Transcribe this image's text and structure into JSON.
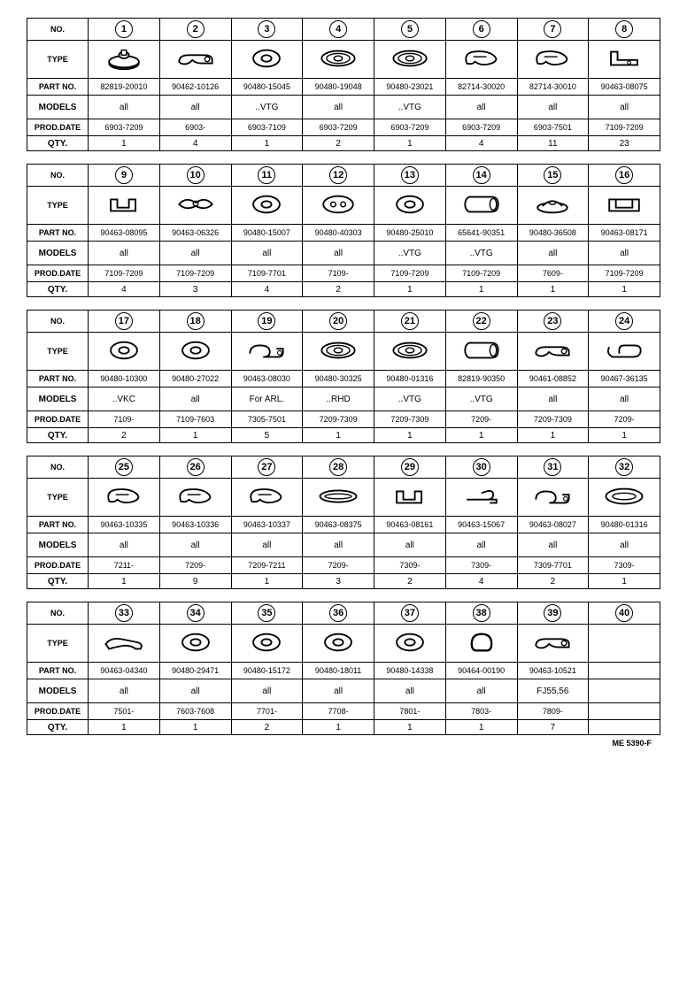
{
  "row_labels": {
    "no": "NO.",
    "type": "TYPE",
    "part": "PART NO.",
    "models": "MODELS",
    "prod": "PROD.DATE",
    "qty": "QTY."
  },
  "footer": "ME 5390-F",
  "blocks": [
    {
      "items": [
        {
          "no": "1",
          "icon": "knob",
          "part": "82819-20010",
          "models": "all",
          "prod": "6903-7209",
          "qty": "1"
        },
        {
          "no": "2",
          "icon": "clamp-flat",
          "part": "90462-10126",
          "models": "all",
          "prod": "6903-",
          "qty": "4"
        },
        {
          "no": "3",
          "icon": "grommet",
          "part": "90480-15045",
          "models": "..VTG",
          "prod": "6903-7109",
          "qty": "1"
        },
        {
          "no": "4",
          "icon": "grommet-wide",
          "part": "90480-19048",
          "models": "all",
          "prod": "6903-7209",
          "qty": "2"
        },
        {
          "no": "5",
          "icon": "grommet-wide",
          "part": "90480-23021",
          "models": "..VTG",
          "prod": "6903-7209",
          "qty": "1"
        },
        {
          "no": "6",
          "icon": "clip-wire",
          "part": "82714-30020",
          "models": "all",
          "prod": "6903-7209",
          "qty": "4"
        },
        {
          "no": "7",
          "icon": "clip-wire",
          "part": "82714-30010",
          "models": "all",
          "prod": "6903-7501",
          "qty": "11"
        },
        {
          "no": "8",
          "icon": "bracket",
          "part": "90463-08075",
          "models": "all",
          "prod": "7109-7209",
          "qty": "23"
        }
      ]
    },
    {
      "items": [
        {
          "no": "9",
          "icon": "clip-u",
          "part": "90463-08095",
          "models": "all",
          "prod": "7109-7209",
          "qty": "4"
        },
        {
          "no": "10",
          "icon": "clamp-wing",
          "part": "90463-06326",
          "models": "all",
          "prod": "7109-7209",
          "qty": "3"
        },
        {
          "no": "11",
          "icon": "grommet",
          "part": "90480-15007",
          "models": "all",
          "prod": "7109-7701",
          "qty": "4"
        },
        {
          "no": "12",
          "icon": "grommet-2hole",
          "part": "90480-40303",
          "models": "all",
          "prod": "7109-",
          "qty": "2"
        },
        {
          "no": "13",
          "icon": "grommet",
          "part": "90480-25010",
          "models": "..VTG",
          "prod": "7109-7209",
          "qty": "1"
        },
        {
          "no": "14",
          "icon": "bushing",
          "part": "65641-90351",
          "models": "..VTG",
          "prod": "7109-7209",
          "qty": "1"
        },
        {
          "no": "15",
          "icon": "washer-dome",
          "part": "90480-36508",
          "models": "all",
          "prod": "7609-",
          "qty": "1"
        },
        {
          "no": "16",
          "icon": "clip-box",
          "part": "90463-08171",
          "models": "all",
          "prod": "7109-7209",
          "qty": "1"
        }
      ]
    },
    {
      "items": [
        {
          "no": "17",
          "icon": "grommet",
          "part": "90480-10300",
          "models": "..VKC",
          "prod": "7109-",
          "qty": "2"
        },
        {
          "no": "18",
          "icon": "grommet",
          "part": "90480-27022",
          "models": "all",
          "prod": "7109-7603",
          "qty": "1"
        },
        {
          "no": "19",
          "icon": "clamp-loop",
          "part": "90463-08030",
          "models": "For ARL.",
          "prod": "7305-7501",
          "qty": "5"
        },
        {
          "no": "20",
          "icon": "grommet-wide",
          "part": "90480-30325",
          "models": "..RHD",
          "prod": "7209-7309",
          "qty": "1"
        },
        {
          "no": "21",
          "icon": "grommet-wide",
          "part": "90480-01316",
          "models": "..VTG",
          "prod": "7209-7309",
          "qty": "1"
        },
        {
          "no": "22",
          "icon": "bushing",
          "part": "82819-90350",
          "models": "..VTG",
          "prod": "7209-",
          "qty": "1"
        },
        {
          "no": "23",
          "icon": "clamp-flat",
          "part": "90461-08852",
          "models": "all",
          "prod": "7209-7309",
          "qty": "1"
        },
        {
          "no": "24",
          "icon": "clip-hook",
          "part": "90467-36135",
          "models": "all",
          "prod": "7209-",
          "qty": "1"
        }
      ]
    },
    {
      "items": [
        {
          "no": "25",
          "icon": "clip-wire",
          "part": "90463-10335",
          "models": "all",
          "prod": "7211-",
          "qty": "1"
        },
        {
          "no": "26",
          "icon": "clip-wire",
          "part": "90463-10336",
          "models": "all",
          "prod": "7209-",
          "qty": "9"
        },
        {
          "no": "27",
          "icon": "clip-wire",
          "part": "90463-10337",
          "models": "all",
          "prod": "7209-7211",
          "qty": "1"
        },
        {
          "no": "28",
          "icon": "clip-long",
          "part": "90463-08375",
          "models": "all",
          "prod": "7209-",
          "qty": "3"
        },
        {
          "no": "29",
          "icon": "clip-u",
          "part": "90463-08161",
          "models": "all",
          "prod": "7309-",
          "qty": "2"
        },
        {
          "no": "30",
          "icon": "clip-tie",
          "part": "90463-15067",
          "models": "all",
          "prod": "7309-",
          "qty": "4"
        },
        {
          "no": "31",
          "icon": "clamp-loop",
          "part": "90463-08027",
          "models": "all",
          "prod": "7309-7701",
          "qty": "2"
        },
        {
          "no": "32",
          "icon": "grommet-oval",
          "part": "90480-01316",
          "models": "all",
          "prod": "7309-",
          "qty": "1"
        }
      ]
    },
    {
      "items": [
        {
          "no": "33",
          "icon": "strap",
          "part": "90463-04340",
          "models": "all",
          "prod": "7501-",
          "qty": "1"
        },
        {
          "no": "34",
          "icon": "grommet",
          "part": "90480-29471",
          "models": "all",
          "prod": "7603-7608",
          "qty": "1"
        },
        {
          "no": "35",
          "icon": "grommet",
          "part": "90480-15172",
          "models": "all",
          "prod": "7701-",
          "qty": "2"
        },
        {
          "no": "36",
          "icon": "grommet",
          "part": "90480-18011",
          "models": "all",
          "prod": "7708-",
          "qty": "1"
        },
        {
          "no": "37",
          "icon": "grommet",
          "part": "90480-14338",
          "models": "all",
          "prod": "7801-",
          "qty": "1"
        },
        {
          "no": "38",
          "icon": "loop",
          "part": "90464-00190",
          "models": "all",
          "prod": "7803-",
          "qty": "1"
        },
        {
          "no": "39",
          "icon": "clamp-flat",
          "part": "90463-10521",
          "models": "FJ55,56",
          "prod": "7809-",
          "qty": "7"
        },
        {
          "no": "40",
          "icon": "empty",
          "part": "",
          "models": "",
          "prod": "",
          "qty": ""
        }
      ]
    }
  ]
}
